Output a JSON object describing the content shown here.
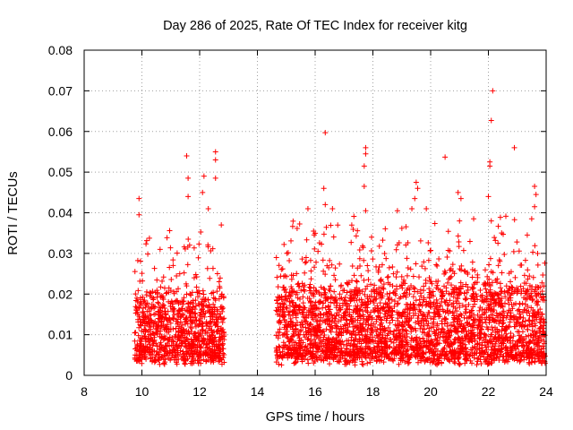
{
  "chart_data": {
    "type": "scatter",
    "title": "Day 286 of 2025, Rate Of TEC Index for receiver kitg",
    "xlabel": "GPS time / hours",
    "ylabel": "ROTI / TECUs",
    "xlim": [
      8,
      24
    ],
    "ylim": [
      0,
      0.08
    ],
    "xticks": [
      8,
      10,
      12,
      14,
      16,
      18,
      20,
      22,
      24
    ],
    "xtick_labels": [
      "8",
      "10",
      "12",
      "14",
      "16",
      "18",
      "20",
      "22",
      "24"
    ],
    "yticks": [
      0,
      0.01,
      0.02,
      0.03,
      0.04,
      0.05,
      0.06,
      0.07,
      0.08
    ],
    "ytick_labels": [
      "0",
      "0.01",
      "0.02",
      "0.03",
      "0.04",
      "0.05",
      "0.06",
      "0.07",
      "0.08"
    ],
    "grid": true,
    "marker": "+",
    "color": "#ff0000",
    "series": [
      {
        "name": "ROTI",
        "segments": [
          {
            "x_start": 9.75,
            "x_end": 12.85,
            "typical_range": [
              0.004,
              0.025
            ],
            "max": 0.055
          },
          {
            "x_start": 14.65,
            "x_end": 24.0,
            "typical_range": [
              0.004,
              0.028
            ],
            "max": 0.07
          }
        ],
        "notable_points": [
          {
            "x": 9.9,
            "y": 0.0435
          },
          {
            "x": 9.9,
            "y": 0.0395
          },
          {
            "x": 11.55,
            "y": 0.054
          },
          {
            "x": 11.6,
            "y": 0.0485
          },
          {
            "x": 11.6,
            "y": 0.044
          },
          {
            "x": 12.15,
            "y": 0.049
          },
          {
            "x": 12.1,
            "y": 0.045
          },
          {
            "x": 12.3,
            "y": 0.041
          },
          {
            "x": 12.55,
            "y": 0.055
          },
          {
            "x": 12.55,
            "y": 0.053
          },
          {
            "x": 12.55,
            "y": 0.0485
          },
          {
            "x": 12.75,
            "y": 0.037
          },
          {
            "x": 16.35,
            "y": 0.0597
          },
          {
            "x": 16.3,
            "y": 0.046
          },
          {
            "x": 16.35,
            "y": 0.042
          },
          {
            "x": 15.75,
            "y": 0.041
          },
          {
            "x": 16.6,
            "y": 0.041
          },
          {
            "x": 17.75,
            "y": 0.056
          },
          {
            "x": 17.75,
            "y": 0.0545
          },
          {
            "x": 17.7,
            "y": 0.0515
          },
          {
            "x": 17.7,
            "y": 0.0465
          },
          {
            "x": 17.75,
            "y": 0.0405
          },
          {
            "x": 18.85,
            "y": 0.0405
          },
          {
            "x": 19.5,
            "y": 0.0475
          },
          {
            "x": 19.55,
            "y": 0.046
          },
          {
            "x": 19.45,
            "y": 0.0435
          },
          {
            "x": 19.35,
            "y": 0.041
          },
          {
            "x": 19.85,
            "y": 0.041
          },
          {
            "x": 20.5,
            "y": 0.0537
          },
          {
            "x": 20.95,
            "y": 0.045
          },
          {
            "x": 21.05,
            "y": 0.0435
          },
          {
            "x": 21.0,
            "y": 0.038
          },
          {
            "x": 22.15,
            "y": 0.07
          },
          {
            "x": 22.1,
            "y": 0.0627
          },
          {
            "x": 22.05,
            "y": 0.0525
          },
          {
            "x": 22.05,
            "y": 0.0515
          },
          {
            "x": 22.1,
            "y": 0.038
          },
          {
            "x": 22.0,
            "y": 0.044
          },
          {
            "x": 22.9,
            "y": 0.056
          },
          {
            "x": 23.6,
            "y": 0.0465
          },
          {
            "x": 23.65,
            "y": 0.0445
          },
          {
            "x": 23.6,
            "y": 0.0415
          },
          {
            "x": 23.5,
            "y": 0.0385
          }
        ]
      }
    ]
  }
}
